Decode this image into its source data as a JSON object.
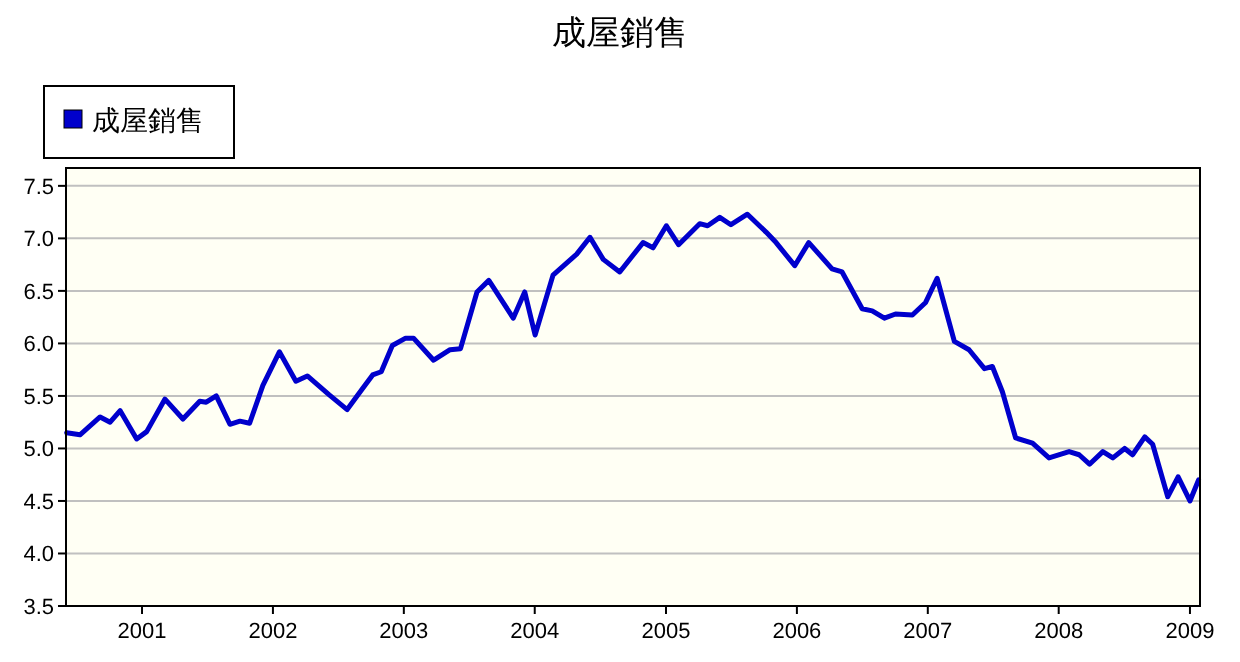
{
  "chart_data": {
    "type": "line",
    "title": "成屋銷售",
    "x": [
      "2000-06-05",
      "2000-07-12",
      "2000-09-06",
      "2000-10-04",
      "2000-11-01",
      "2000-12-17",
      "2001-01-14",
      "2001-03-06",
      "2001-04-25",
      "2001-06-11",
      "2001-06-29",
      "2001-07-27",
      "2001-09-03",
      "2001-10-01",
      "2001-10-28",
      "2001-12-04",
      "2002-01-19",
      "2002-03-06",
      "2002-04-07",
      "2002-06-07",
      "2002-07-27",
      "2002-09-08",
      "2002-10-06",
      "2002-10-30",
      "2002-11-30",
      "2003-01-06",
      "2003-01-28",
      "2003-03-25",
      "2003-05-10",
      "2003-06-08",
      "2003-07-24",
      "2003-08-26",
      "2003-11-02",
      "2003-12-04",
      "2004-01-02",
      "2004-02-21",
      "2004-04-27",
      "2004-06-03",
      "2004-07-10",
      "2004-08-25",
      "2004-10-29",
      "2004-11-26",
      "2005-01-02",
      "2005-02-05",
      "2005-04-05",
      "2005-04-27",
      "2005-05-31",
      "2005-07-01",
      "2005-08-16",
      "2005-10-07",
      "2005-11-04",
      "2005-12-26",
      "2006-02-03",
      "2006-04-09",
      "2006-05-07",
      "2006-07-02",
      "2006-07-30",
      "2006-09-02",
      "2006-10-03",
      "2006-11-19",
      "2006-12-26",
      "2007-01-27",
      "2007-03-16",
      "2007-04-26",
      "2007-06-08",
      "2007-06-30",
      "2007-07-28",
      "2007-09-03",
      "2007-10-20",
      "2007-12-05",
      "2008-01-30",
      "2008-02-27",
      "2008-03-27",
      "2008-05-03",
      "2008-05-31",
      "2008-07-03",
      "2008-07-25",
      "2008-08-28",
      "2008-09-19",
      "2008-10-31",
      "2008-11-29",
      "2009-01-01",
      "2009-01-25"
    ],
    "series": [
      {
        "name": "成屋銷售",
        "color": "#0000cc",
        "values": [
          5.15,
          5.13,
          5.3,
          5.25,
          5.36,
          5.09,
          5.16,
          5.47,
          5.28,
          5.45,
          5.44,
          5.5,
          5.23,
          5.26,
          5.24,
          5.6,
          5.92,
          5.64,
          5.69,
          5.51,
          5.37,
          5.57,
          5.7,
          5.73,
          5.98,
          6.05,
          6.05,
          5.84,
          5.94,
          5.95,
          6.49,
          6.6,
          6.24,
          6.49,
          6.08,
          6.65,
          6.85,
          7.01,
          6.8,
          6.68,
          6.96,
          6.91,
          7.12,
          6.94,
          7.14,
          7.12,
          7.2,
          7.13,
          7.23,
          7.06,
          6.96,
          6.74,
          6.96,
          6.71,
          6.68,
          6.33,
          6.31,
          6.24,
          6.28,
          6.27,
          6.39,
          6.62,
          6.02,
          5.94,
          5.76,
          5.78,
          5.54,
          5.1,
          5.05,
          4.91,
          4.97,
          4.94,
          4.85,
          4.97,
          4.91,
          5.0,
          4.94,
          5.11,
          5.04,
          4.54,
          4.73,
          4.5,
          4.7
        ]
      }
    ],
    "xlim": [
      "2000-06-03",
      "2009-01-29"
    ],
    "xticks": [
      "2001",
      "2002",
      "2003",
      "2004",
      "2005",
      "2006",
      "2007",
      "2008",
      "2009"
    ],
    "ylim": [
      3.5,
      7.67
    ],
    "yticks": [
      {
        "value": 3.5,
        "label": "3.5"
      },
      {
        "value": 4,
        "label": "4.0"
      },
      {
        "value": 4.5,
        "label": "4.5"
      },
      {
        "value": 5,
        "label": "5.0"
      },
      {
        "value": 5.5,
        "label": "5.5"
      },
      {
        "value": 6,
        "label": "6.0"
      },
      {
        "value": 6.5,
        "label": "6.5"
      },
      {
        "value": 7,
        "label": "7.0"
      },
      {
        "value": 7.5,
        "label": "7.5"
      }
    ],
    "grid": "y",
    "legend": "top left",
    "line_style": "solid",
    "marker": "none"
  }
}
